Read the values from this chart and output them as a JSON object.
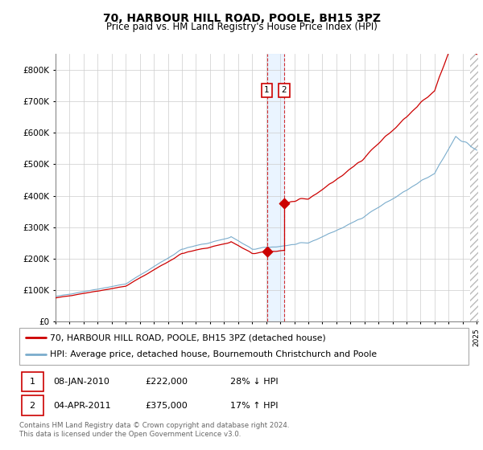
{
  "title": "70, HARBOUR HILL ROAD, POOLE, BH15 3PZ",
  "subtitle": "Price paid vs. HM Land Registry's House Price Index (HPI)",
  "legend_line1": "70, HARBOUR HILL ROAD, POOLE, BH15 3PZ (detached house)",
  "legend_line2": "HPI: Average price, detached house, Bournemouth Christchurch and Poole",
  "annotation1_label": "1",
  "annotation1_date": "08-JAN-2010",
  "annotation1_price": "£222,000",
  "annotation1_hpi": "28% ↓ HPI",
  "annotation1_year": 2010.05,
  "annotation1_value": 222000,
  "annotation2_label": "2",
  "annotation2_date": "04-APR-2011",
  "annotation2_price": "£375,000",
  "annotation2_hpi": "17% ↑ HPI",
  "annotation2_year": 2011.27,
  "annotation2_value": 375000,
  "footer": "Contains HM Land Registry data © Crown copyright and database right 2024.\nThis data is licensed under the Open Government Licence v3.0.",
  "red_color": "#cc0000",
  "blue_color": "#7aaccc",
  "shaded_color": "#ddeeff",
  "ylim": [
    0,
    850000
  ],
  "yticks": [
    0,
    100000,
    200000,
    300000,
    400000,
    500000,
    600000,
    700000,
    800000
  ],
  "ytick_labels": [
    "£0",
    "£100K",
    "£200K",
    "£300K",
    "£400K",
    "£500K",
    "£600K",
    "£700K",
    "£800K"
  ],
  "hpi_base_months": 360,
  "sale1_year": 2010.05,
  "sale1_price": 222000,
  "sale2_year": 2011.27,
  "sale2_price": 375000
}
